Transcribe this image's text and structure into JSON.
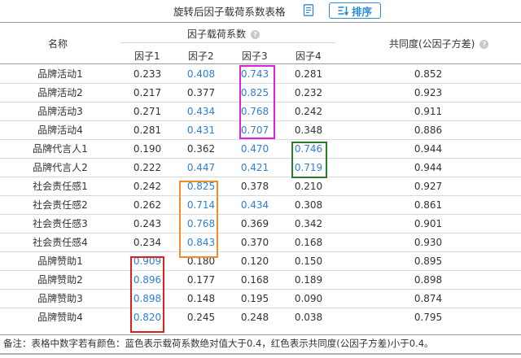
{
  "table_title": "旋转后因子载荷系数表格",
  "sort_label": "排序",
  "headers": {
    "name": "名称",
    "loading_group": "因子载荷系数",
    "communality": "共同度(公因子方差)",
    "factors": [
      "因子1",
      "因子2",
      "因子3",
      "因子4"
    ]
  },
  "highlight_color": "#2e7fd4",
  "box_colors": {
    "factor3": "#e020e0",
    "factor4": "#2a7a2a",
    "factor2": "#f08c2a",
    "factor1": "#e02020"
  },
  "rows": [
    {
      "name": "品牌活动1",
      "f": [
        "0.233",
        "0.408",
        "0.743",
        "0.281"
      ],
      "hi": [
        false,
        true,
        true,
        false
      ],
      "com": "0.852"
    },
    {
      "name": "品牌活动2",
      "f": [
        "0.217",
        "0.377",
        "0.825",
        "0.232"
      ],
      "hi": [
        false,
        false,
        true,
        false
      ],
      "com": "0.923"
    },
    {
      "name": "品牌活动3",
      "f": [
        "0.271",
        "0.434",
        "0.768",
        "0.242"
      ],
      "hi": [
        false,
        true,
        true,
        false
      ],
      "com": "0.911"
    },
    {
      "name": "品牌活动4",
      "f": [
        "0.281",
        "0.431",
        "0.707",
        "0.348"
      ],
      "hi": [
        false,
        true,
        true,
        false
      ],
      "com": "0.886"
    },
    {
      "name": "品牌代言人1",
      "f": [
        "0.190",
        "0.362",
        "0.470",
        "0.746"
      ],
      "hi": [
        false,
        false,
        true,
        true
      ],
      "com": "0.944"
    },
    {
      "name": "品牌代言人2",
      "f": [
        "0.222",
        "0.447",
        "0.421",
        "0.719"
      ],
      "hi": [
        false,
        true,
        true,
        true
      ],
      "com": "0.944"
    },
    {
      "name": "社会责任感1",
      "f": [
        "0.242",
        "0.825",
        "0.378",
        "0.210"
      ],
      "hi": [
        false,
        true,
        false,
        false
      ],
      "com": "0.927"
    },
    {
      "name": "社会责任感2",
      "f": [
        "0.262",
        "0.714",
        "0.434",
        "0.308"
      ],
      "hi": [
        false,
        true,
        true,
        false
      ],
      "com": "0.861"
    },
    {
      "name": "社会责任感3",
      "f": [
        "0.243",
        "0.768",
        "0.369",
        "0.342"
      ],
      "hi": [
        false,
        true,
        false,
        false
      ],
      "com": "0.901"
    },
    {
      "name": "社会责任感4",
      "f": [
        "0.234",
        "0.843",
        "0.370",
        "0.168"
      ],
      "hi": [
        false,
        true,
        false,
        false
      ],
      "com": "0.930"
    },
    {
      "name": "品牌赞助1",
      "f": [
        "0.909",
        "0.180",
        "0.120",
        "0.150"
      ],
      "hi": [
        true,
        false,
        false,
        false
      ],
      "com": "0.895"
    },
    {
      "name": "品牌赞助2",
      "f": [
        "0.896",
        "0.177",
        "0.168",
        "0.189"
      ],
      "hi": [
        true,
        false,
        false,
        false
      ],
      "com": "0.898"
    },
    {
      "name": "品牌赞助3",
      "f": [
        "0.898",
        "0.148",
        "0.195",
        "0.090"
      ],
      "hi": [
        true,
        false,
        false,
        false
      ],
      "com": "0.874"
    },
    {
      "name": "品牌赞助4",
      "f": [
        "0.820",
        "0.245",
        "0.248",
        "0.038"
      ],
      "hi": [
        true,
        false,
        false,
        false
      ],
      "com": "0.795"
    }
  ],
  "footnote": "备注：表格中数字若有颜色：蓝色表示载荷系数绝对值大于0.4，红色表示共同度(公因子方差)小于0.4。"
}
